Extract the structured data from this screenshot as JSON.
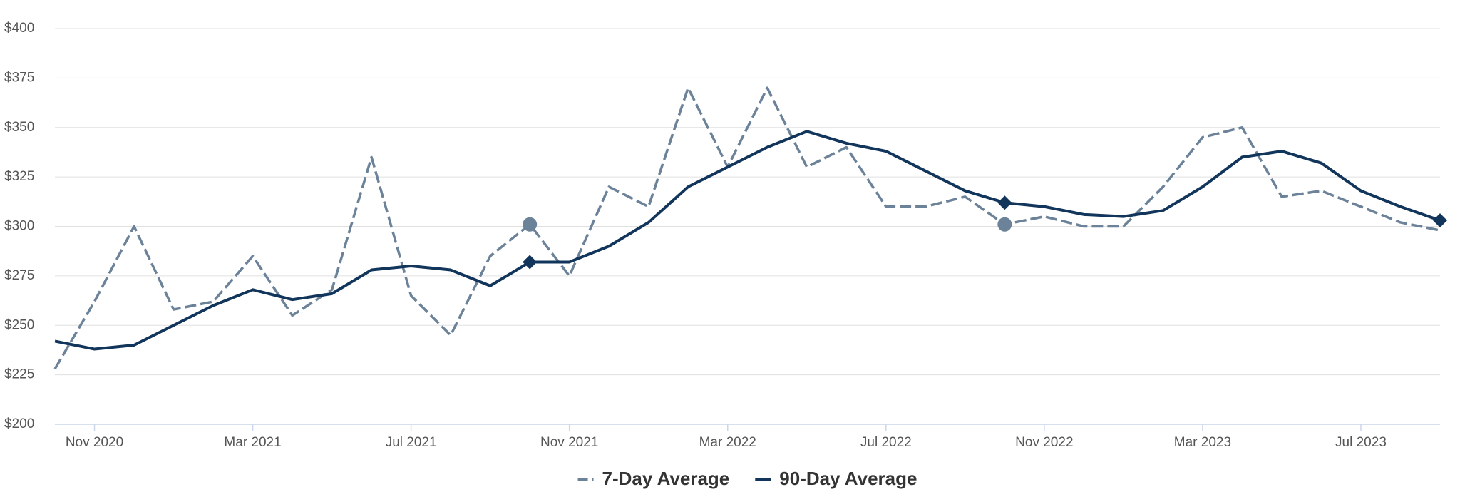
{
  "chart_data": {
    "type": "line",
    "x": [
      "2020-10",
      "2020-11",
      "2020-12",
      "2021-01",
      "2021-02",
      "2021-03",
      "2021-04",
      "2021-05",
      "2021-06",
      "2021-07",
      "2021-08",
      "2021-09",
      "2021-10",
      "2021-11",
      "2021-12",
      "2022-01",
      "2022-02",
      "2022-03",
      "2022-04",
      "2022-05",
      "2022-06",
      "2022-07",
      "2022-08",
      "2022-09",
      "2022-10",
      "2022-11",
      "2022-12",
      "2023-01",
      "2023-02",
      "2023-03",
      "2023-04",
      "2023-05",
      "2023-06",
      "2023-07",
      "2023-08",
      "2023-09"
    ],
    "series": [
      {
        "name": "7-Day Average",
        "color": "#6b8299",
        "dash": true,
        "markers": [
          12,
          24
        ],
        "marker_shape": "circle",
        "values": [
          228,
          262,
          300,
          258,
          262,
          285,
          255,
          268,
          335,
          265,
          245,
          285,
          301,
          275,
          320,
          310,
          370,
          330,
          370,
          330,
          340,
          310,
          310,
          315,
          301,
          305,
          300,
          300,
          320,
          345,
          350,
          315,
          318,
          310,
          302,
          298
        ]
      },
      {
        "name": "90-Day Average",
        "color": "#12355b",
        "dash": false,
        "markers": [
          12,
          24,
          35
        ],
        "marker_shape": "diamond",
        "values": [
          242,
          238,
          240,
          250,
          260,
          268,
          263,
          266,
          278,
          280,
          278,
          270,
          282,
          282,
          290,
          302,
          320,
          330,
          340,
          348,
          342,
          338,
          328,
          318,
          312,
          310,
          306,
          305,
          308,
          320,
          335,
          338,
          332,
          318,
          310,
          303
        ]
      }
    ],
    "xlim": [
      "2020-10",
      "2023-09"
    ],
    "xticks": [
      {
        "value": "2020-11",
        "label": "Nov 2020"
      },
      {
        "value": "2021-03",
        "label": "Mar 2021"
      },
      {
        "value": "2021-07",
        "label": "Jul 2021"
      },
      {
        "value": "2021-11",
        "label": "Nov 2021"
      },
      {
        "value": "2022-03",
        "label": "Mar 2022"
      },
      {
        "value": "2022-07",
        "label": "Jul 2022"
      },
      {
        "value": "2022-11",
        "label": "Nov 2022"
      },
      {
        "value": "2023-03",
        "label": "Mar 2023"
      },
      {
        "value": "2023-07",
        "label": "Jul 2023"
      }
    ],
    "ylim": [
      200,
      400
    ],
    "yticks": [
      {
        "value": 200,
        "label": "$200"
      },
      {
        "value": 225,
        "label": "$225"
      },
      {
        "value": 250,
        "label": "$250"
      },
      {
        "value": 275,
        "label": "$275"
      },
      {
        "value": 300,
        "label": "$300"
      },
      {
        "value": 325,
        "label": "$325"
      },
      {
        "value": 350,
        "label": "$350"
      },
      {
        "value": 375,
        "label": "$375"
      },
      {
        "value": 400,
        "label": "$400"
      }
    ],
    "grid": true,
    "legend": "bottom"
  }
}
